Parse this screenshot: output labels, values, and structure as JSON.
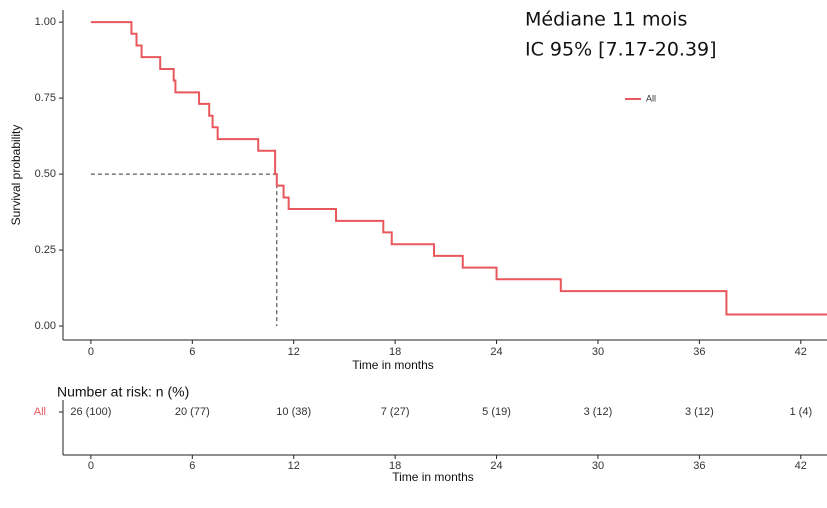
{
  "chart_data": {
    "type": "step",
    "annotations": [
      "Médiane 11 mois",
      "IC 95% [7.17-20.39]"
    ],
    "x_label": "Time in months",
    "y_label": "Survival probability",
    "xlim": [
      -1.65,
      43.55
    ],
    "ylim": [
      -0.046,
      1.04
    ],
    "xticks": [
      0,
      6,
      12,
      18,
      24,
      30,
      36,
      42
    ],
    "yticks": [
      {
        "value": 0,
        "label": "0.00"
      },
      {
        "value": 0.25,
        "label": "0.25"
      },
      {
        "value": 0.5,
        "label": "0.50"
      },
      {
        "value": 0.75,
        "label": "0.75"
      },
      {
        "value": 1,
        "label": "1.00"
      }
    ],
    "median_line": {
      "x": 11,
      "y": 0.5
    },
    "legend": "top-right",
    "series": [
      {
        "name": "All",
        "color": "#e8575b",
        "x": [
          0,
          2.4,
          2.7,
          3.0,
          4.1,
          4.9,
          5.0,
          6.4,
          7.0,
          7.2,
          7.5,
          9.9,
          10.9,
          11.0,
          11.4,
          11.7,
          14.5,
          17.3,
          17.8,
          20.3,
          22.0,
          24.0,
          27.8,
          37.6,
          43.55
        ],
        "values": [
          1,
          0.962,
          0.923,
          0.885,
          0.846,
          0.808,
          0.769,
          0.731,
          0.692,
          0.654,
          0.615,
          0.577,
          0.5,
          0.462,
          0.423,
          0.385,
          0.346,
          0.308,
          0.269,
          0.231,
          0.192,
          0.154,
          0.115,
          0.038,
          0.038
        ]
      }
    ],
    "risk_table": {
      "title": "Number at risk: n (%)",
      "strata": "All",
      "values": [
        26,
        20,
        10,
        7,
        5,
        3,
        3,
        1
      ],
      "value_labels": [
        "26 (100)",
        "20 (77)",
        "10 (38)",
        "7 (27)",
        "5 (19)",
        "3 (12)",
        "3 (12)",
        "1 (4)"
      ]
    }
  }
}
